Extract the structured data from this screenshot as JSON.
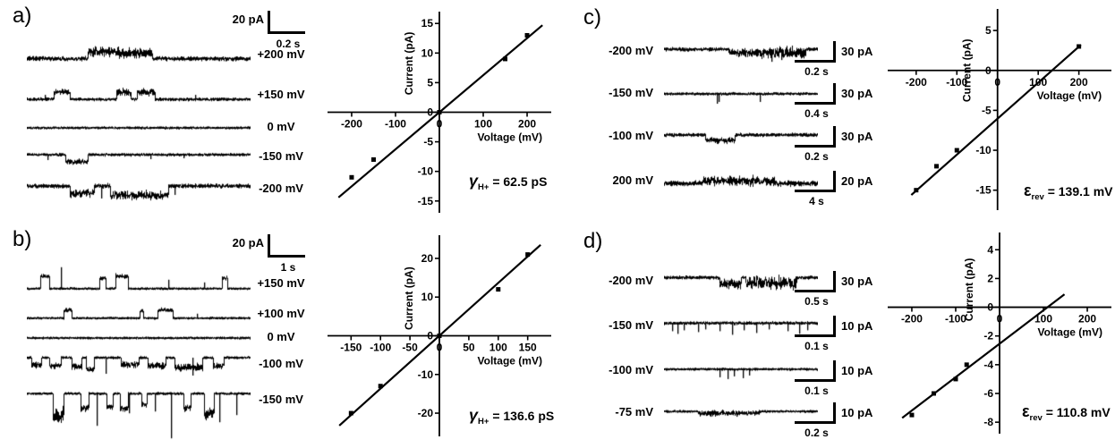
{
  "colors": {
    "background": "#ffffff",
    "ink": "#000000"
  },
  "panels": [
    {
      "id": "a",
      "label": "a)",
      "scalebar": {
        "current": "20 pA",
        "time": "0.2 s"
      },
      "traces": [
        {
          "label": "+200 mV",
          "render": {
            "base": 0.6,
            "noise": 2.0,
            "events": [
              [
                0.27,
                0.41,
                -8,
                2.6
              ],
              [
                0.41,
                0.56,
                -6,
                3.0
              ]
            ]
          }
        },
        {
          "label": "+150 mV",
          "render": {
            "base": 0.62,
            "noise": 1.3,
            "events": [
              [
                0.12,
                0.19,
                -8,
                1.6
              ],
              [
                0.4,
                0.465,
                -8,
                2.2
              ],
              [
                0.49,
                0.57,
                -8,
                2.2
              ]
            ],
            "spikes": [
              [
                0.08,
                -5
              ],
              [
                0.75,
                -5
              ]
            ]
          }
        },
        {
          "label": "0 mV",
          "render": {
            "base": 0.5,
            "noise": 1.0
          }
        },
        {
          "label": "-150 mV",
          "render": {
            "base": 0.4,
            "noise": 1.2,
            "events": [
              [
                0.17,
                0.27,
                8,
                1.6
              ]
            ],
            "spikes": [
              [
                0.09,
                6
              ],
              [
                0.55,
                5
              ],
              [
                0.7,
                4
              ]
            ]
          }
        },
        {
          "label": "-200 mV",
          "render": {
            "base": 0.38,
            "noise": 2.0,
            "events": [
              [
                0.19,
                0.3,
                8,
                2.0
              ],
              [
                0.37,
                0.63,
                10,
                2.4
              ]
            ],
            "spikes": [
              [
                0.33,
                14
              ],
              [
                0.66,
                10
              ]
            ]
          }
        }
      ],
      "annotation": {
        "symbol": "γ",
        "italic": true,
        "subscript": "H+",
        "value": "= 62.5 pS"
      }
    },
    {
      "id": "b",
      "label": "b)",
      "scalebar": {
        "current": "20 pA",
        "time": "1 s"
      },
      "traces": [
        {
          "label": "+150 mV",
          "render": {
            "base": 0.72,
            "noise": 0.9,
            "events": [
              [
                0.06,
                0.1,
                -14,
                1.2
              ],
              [
                0.325,
                0.35,
                -12,
                1.2
              ],
              [
                0.395,
                0.45,
                -14,
                1.2
              ],
              [
                0.87,
                0.895,
                -12,
                1.2
              ]
            ],
            "spikes": [
              [
                0.15,
                -24
              ],
              [
                0.63,
                -10
              ],
              [
                0.79,
                -7
              ]
            ]
          }
        },
        {
          "label": "+100 mV",
          "render": {
            "base": 0.66,
            "noise": 0.85,
            "events": [
              [
                0.165,
                0.2,
                -9,
                1.1
              ],
              [
                0.505,
                0.52,
                -8,
                1.0
              ],
              [
                0.585,
                0.65,
                -9,
                1.1
              ]
            ],
            "spikes": [
              [
                0.76,
                -5
              ]
            ]
          }
        },
        {
          "label": "0 mV",
          "render": {
            "base": 0.5,
            "noise": 0.9
          }
        },
        {
          "label": "-100 mV",
          "render": {
            "base": 0.2,
            "noise": 1.1,
            "events": [
              [
                0.02,
                0.065,
                8,
                1.8
              ],
              [
                0.1,
                0.15,
                9,
                1.8
              ],
              [
                0.2,
                0.245,
                10,
                2.0
              ],
              [
                0.265,
                0.3,
                13,
                1.6
              ],
              [
                0.42,
                0.5,
                8,
                1.8
              ],
              [
                0.54,
                0.62,
                9,
                2.2
              ],
              [
                0.66,
                0.785,
                11,
                2.6
              ],
              [
                0.83,
                0.88,
                9,
                1.8
              ]
            ],
            "spikes": [
              [
                0.35,
                18
              ],
              [
                0.74,
                20
              ]
            ]
          }
        },
        {
          "label": "-150 mV",
          "render": {
            "base": 0.1,
            "noise": 1.0,
            "events": [
              [
                0.115,
                0.165,
                24,
                6
              ],
              [
                0.24,
                0.275,
                16,
                3
              ],
              [
                0.355,
                0.385,
                15,
                2.4
              ],
              [
                0.415,
                0.45,
                16,
                2.4
              ],
              [
                0.51,
                0.535,
                12,
                2
              ],
              [
                0.7,
                0.73,
                16,
                2.4
              ],
              [
                0.79,
                0.835,
                22,
                5
              ]
            ],
            "spikes": [
              [
                0.31,
                36
              ],
              [
                0.455,
                22
              ],
              [
                0.57,
                20
              ],
              [
                0.645,
                50
              ],
              [
                0.86,
                32
              ],
              [
                0.935,
                24
              ]
            ]
          }
        }
      ],
      "annotation": {
        "symbol": "γ",
        "italic": true,
        "subscript": "H+",
        "value": "= 136.6 pS"
      }
    },
    {
      "id": "c",
      "label": "c)",
      "traces": [
        {
          "label": "-200 mV",
          "scalebar": {
            "current": "30 pA",
            "time": "0.2 s"
          },
          "render": {
            "base": 0.42,
            "noise": 1.6,
            "events": [
              [
                0.42,
                0.6,
                4,
                2.4
              ],
              [
                0.6,
                0.92,
                4,
                4.2
              ]
            ],
            "spikes": [
              [
                0.7,
                14
              ],
              [
                0.76,
                12
              ]
            ]
          }
        },
        {
          "label": "-150 mV",
          "scalebar": {
            "current": "30 pA",
            "time": "0.4 s"
          },
          "render": {
            "base": 0.5,
            "noise": 1.1,
            "spikes": [
              [
                0.345,
                11
              ],
              [
                0.355,
                9
              ],
              [
                0.62,
                9
              ]
            ]
          }
        },
        {
          "label": "-100 mV",
          "scalebar": {
            "current": "30 pA",
            "time": "0.2 s"
          },
          "render": {
            "base": 0.42,
            "noise": 1.5,
            "events": [
              [
                0.27,
                0.46,
                6,
                1.6
              ]
            ]
          }
        },
        {
          "label": "200 mV",
          "scalebar": {
            "current": "20 pA",
            "time": "4 s"
          },
          "render": {
            "base": 0.55,
            "noise": 2.4,
            "events": [
              [
                0.25,
                0.72,
                -3,
                2.0
              ]
            ]
          }
        }
      ],
      "annotation": {
        "symbol": "ε",
        "italic": false,
        "subscript": "rev",
        "value": "= 139.1 mV"
      }
    },
    {
      "id": "d",
      "label": "d)",
      "traces": [
        {
          "label": "-200 mV",
          "scalebar": {
            "current": "30 pA",
            "time": "0.5 s"
          },
          "render": {
            "base": 0.38,
            "noise": 1.5,
            "events": [
              [
                0.36,
                0.5,
                7,
                3.0
              ],
              [
                0.53,
                0.86,
                6,
                5.0
              ]
            ]
          }
        },
        {
          "label": "-150 mV",
          "scalebar": {
            "current": "10 pA",
            "time": "0.1 s"
          },
          "render": {
            "base": 0.38,
            "noise": 1.3,
            "spikes": [
              [
                0.05,
                9
              ],
              [
                0.09,
                12
              ],
              [
                0.13,
                8
              ],
              [
                0.22,
                10
              ],
              [
                0.27,
                7
              ],
              [
                0.36,
                9
              ],
              [
                0.44,
                13
              ],
              [
                0.52,
                8
              ],
              [
                0.6,
                11
              ],
              [
                0.68,
                7
              ],
              [
                0.8,
                9
              ],
              [
                0.88,
                12
              ],
              [
                0.93,
                8
              ]
            ]
          }
        },
        {
          "label": "-100 mV",
          "scalebar": {
            "current": "10 pA",
            "time": "0.1 s"
          },
          "render": {
            "base": 0.42,
            "noise": 1.0,
            "spikes": [
              [
                0.36,
                9
              ],
              [
                0.41,
                11
              ],
              [
                0.455,
                8
              ],
              [
                0.51,
                10
              ],
              [
                0.555,
                7
              ]
            ]
          }
        },
        {
          "label": "-75 mV",
          "scalebar": {
            "current": "10 pA",
            "time": "0.2 s"
          },
          "render": {
            "base": 0.42,
            "noise": 1.0,
            "events": [
              [
                0.22,
                0.62,
                2,
                1.6
              ]
            ],
            "spikes": [
              [
                0.3,
                6
              ],
              [
                0.47,
                6
              ]
            ]
          }
        }
      ],
      "annotation": {
        "symbol": "ε",
        "italic": false,
        "subscript": "rev",
        "value": "= 110.8 mV"
      }
    }
  ],
  "chart_data": [
    {
      "panel": "a",
      "type": "scatter",
      "title": "",
      "xlabel": "Voltage (mV)",
      "ylabel": "Current (pA)",
      "xlim": [
        -255,
        255
      ],
      "ylim": [
        -17,
        17
      ],
      "xticks": [
        -200,
        -100,
        0,
        100,
        200
      ],
      "yticks": [
        -15,
        -10,
        -5,
        0,
        5,
        10,
        15
      ],
      "points": [
        [
          -200,
          -11
        ],
        [
          -150,
          -8
        ],
        [
          0,
          0
        ],
        [
          150,
          9
        ],
        [
          200,
          13
        ]
      ],
      "fit_line": [
        [
          -230,
          -14.4
        ],
        [
          235,
          14.7
        ]
      ],
      "conductance_pS": 62.5,
      "annotation": "γH+ = 62.5 pS",
      "legend": "none",
      "grid": false
    },
    {
      "panel": "b",
      "type": "scatter",
      "title": "",
      "xlabel": "Voltage (mV)",
      "ylabel": "Current (pA)",
      "xlim": [
        -190,
        190
      ],
      "ylim": [
        -26,
        26
      ],
      "xticks": [
        -150,
        -100,
        -50,
        0,
        50,
        100,
        150
      ],
      "yticks": [
        -20,
        -10,
        0,
        10,
        20
      ],
      "points": [
        [
          -150,
          -20
        ],
        [
          -100,
          -13
        ],
        [
          0,
          0
        ],
        [
          100,
          12
        ],
        [
          150,
          21
        ]
      ],
      "fit_line": [
        [
          -170,
          -23.2
        ],
        [
          172,
          23.5
        ]
      ],
      "conductance_pS": 136.6,
      "annotation": "γH+ = 136.6 pS",
      "legend": "none",
      "grid": false
    },
    {
      "panel": "c",
      "type": "scatter",
      "title": "",
      "xlabel": "Voltage (mV)",
      "ylabel": "Current (pA)",
      "xlim": [
        -270,
        280
      ],
      "ylim": [
        -17.5,
        7.7
      ],
      "xticks": [
        -200,
        -100,
        0,
        100,
        200
      ],
      "yticks": [
        -15,
        -10,
        -5,
        0,
        5
      ],
      "points": [
        [
          -200,
          -15
        ],
        [
          -150,
          -12
        ],
        [
          -100,
          -10
        ],
        [
          200,
          3
        ]
      ],
      "fit_line": [
        [
          -212,
          -15.6
        ],
        [
          205,
          3.2
        ]
      ],
      "reversal_potential_mV": 139.1,
      "annotation": "εrev = 139.1 mV",
      "legend": "none",
      "grid": false
    },
    {
      "panel": "d",
      "type": "scatter",
      "title": "",
      "xlabel": "Voltage (mV)",
      "ylabel": "Current (pA)",
      "xlim": [
        -255,
        255
      ],
      "ylim": [
        -8.8,
        5.2
      ],
      "xticks": [
        -200,
        -100,
        0,
        100,
        200
      ],
      "yticks": [
        -8,
        -6,
        -4,
        -2,
        0,
        2,
        4
      ],
      "points": [
        [
          -200,
          -7.5
        ],
        [
          -150,
          -6
        ],
        [
          -100,
          -5
        ],
        [
          -75,
          -4
        ]
      ],
      "fit_line": [
        [
          -222,
          -7.7
        ],
        [
          148,
          0.9
        ]
      ],
      "reversal_potential_mV": 110.8,
      "annotation": "εrev = 110.8 mV",
      "legend": "none",
      "grid": false
    }
  ]
}
